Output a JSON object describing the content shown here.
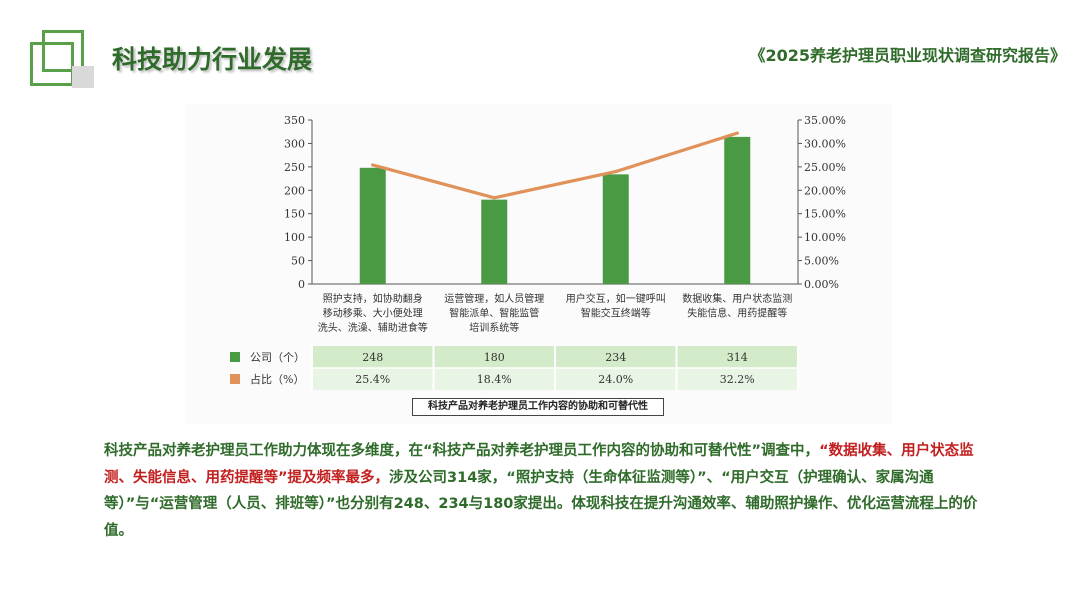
{
  "header": {
    "title": "科技助力行业发展",
    "report_title": "《2025养老护理员职业现状调查研究报告》"
  },
  "chart_data": {
    "type": "bar",
    "categories": [
      [
        "照护支持，如协助翻身",
        "移动移乘、大小便处理",
        "洗头、洗澡、辅助进食等"
      ],
      [
        "运营管理，如人员管理",
        "智能派单、智能监管",
        "培训系统等"
      ],
      [
        "用户交互，如一键呼叫",
        "智能交互终端等"
      ],
      [
        "数据收集、用户状态监测",
        "失能信息、用药提醒等"
      ]
    ],
    "series": [
      {
        "name": "公司（个）",
        "type": "bar",
        "axis": "left",
        "values": [
          248,
          180,
          234,
          314
        ],
        "labels": [
          "248",
          "180",
          "234",
          "314"
        ],
        "color": "#4a9a44"
      },
      {
        "name": "占比（%）",
        "type": "line",
        "axis": "right",
        "values": [
          25.4,
          18.4,
          24.0,
          32.2
        ],
        "labels": [
          "25.4%",
          "18.4%",
          "24.0%",
          "32.2%"
        ],
        "color": "#e0925a"
      }
    ],
    "y_left": {
      "min": 0,
      "max": 350,
      "ticks": [
        "0",
        "50",
        "100",
        "150",
        "200",
        "250",
        "300",
        "350"
      ]
    },
    "y_right": {
      "min": 0,
      "max": 35,
      "ticks": [
        "0.00%",
        "5.00%",
        "10.00%",
        "15.00%",
        "20.00%",
        "25.00%",
        "30.00%",
        "35.00%"
      ]
    },
    "legend_placement": "table-left",
    "grid": false,
    "caption": "科技产品对养老护理员工作内容的协助和可替代性"
  },
  "body": {
    "p1": "科技产品对养老护理员工作助力体现在多维度，在“科技产品对养老护理员工作内容的协助和可替代性”调查中，",
    "p2": "“数据收集、用户状态监测、失能信息、用药提醒等”提及频率最多，",
    "p3": "涉及公司314家，“照护支持（生命体征监测等）”、“用户交互（护理确认、家属沟通等）”与“运营管理（人员、排班等）”也分别有248、234与180家提出。体现科技在提升沟通效率、辅助照护操作、优化运营流程上的价值。"
  }
}
